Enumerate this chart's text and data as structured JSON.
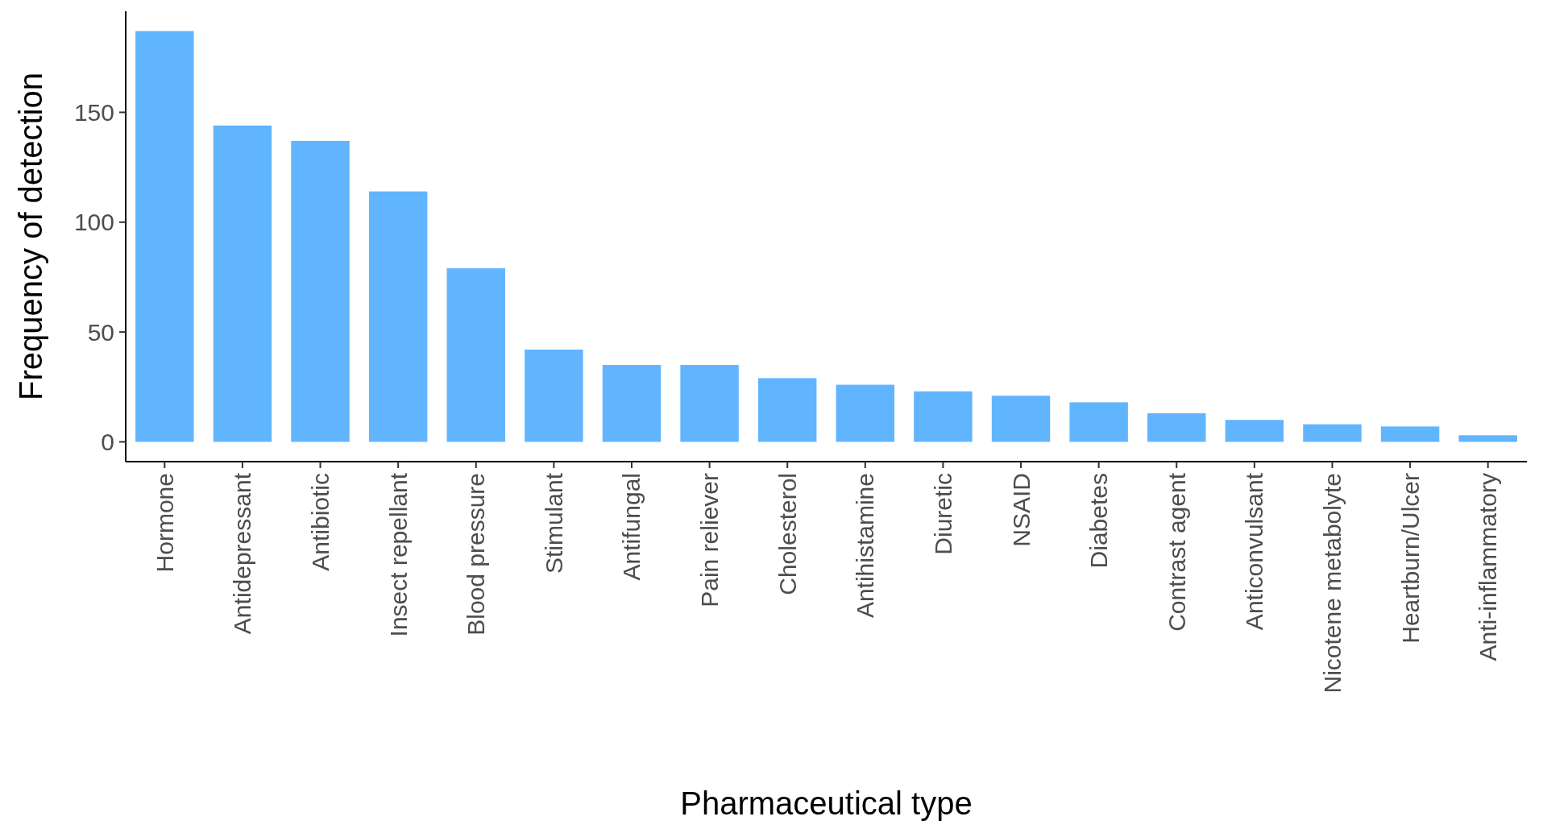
{
  "chart_data": {
    "type": "bar",
    "xlabel": "Pharmaceutical type",
    "ylabel": "Frequency of detection",
    "categories": [
      "Hormone",
      "Antidepressant",
      "Antibiotic",
      "Insect repellant",
      "Blood pressure",
      "Stimulant",
      "Antifungal",
      "Pain reliever",
      "Cholesterol",
      "Antihistamine",
      "Diuretic",
      "NSAID",
      "Diabetes",
      "Contrast agent",
      "Anticonvulsant",
      "Nicotene metabolyte",
      "Heartburn/Ulcer",
      "Anti-inflammatory"
    ],
    "values": [
      187,
      144,
      137,
      114,
      79,
      42,
      35,
      35,
      29,
      26,
      23,
      21,
      18,
      13,
      10,
      8,
      7,
      3
    ],
    "color": "#61b5ff",
    "ylim": [
      -9,
      196
    ],
    "yticks": [
      0,
      50,
      100,
      150
    ],
    "grid": false
  }
}
